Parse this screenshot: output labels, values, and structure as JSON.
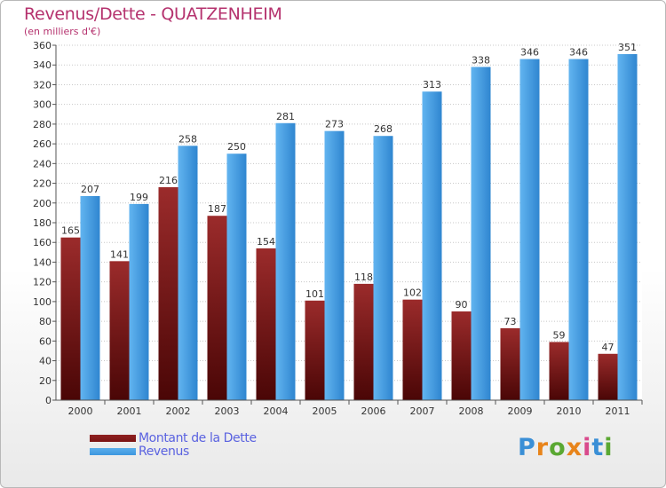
{
  "title": "Revenus/Dette - QUATZENHEIM",
  "subtitle": "(en milliers d'€)",
  "colors": {
    "title": "#b5326e",
    "dette": "#7a1414",
    "revenus": "#3d97df",
    "legend_text": "#5a62e0"
  },
  "chart_data": {
    "type": "bar",
    "categories": [
      "2000",
      "2001",
      "2002",
      "2003",
      "2004",
      "2005",
      "2006",
      "2007",
      "2008",
      "2009",
      "2010",
      "2011"
    ],
    "series": [
      {
        "name": "Montant de la Dette",
        "values": [
          165,
          141,
          216,
          187,
          154,
          101,
          118,
          102,
          90,
          73,
          59,
          47
        ]
      },
      {
        "name": "Revenus",
        "values": [
          207,
          199,
          258,
          250,
          281,
          273,
          268,
          313,
          338,
          346,
          346,
          351
        ]
      }
    ],
    "ylim": [
      0,
      360
    ],
    "yticks": [
      0,
      20,
      40,
      60,
      80,
      100,
      120,
      140,
      160,
      180,
      200,
      220,
      240,
      260,
      280,
      300,
      320,
      340,
      360
    ],
    "grid": true,
    "legend_position": "bottom-left"
  },
  "legend": {
    "dette_label": "Montant de la Dette",
    "revenus_label": "Revenus"
  },
  "logo": {
    "text": "Proxiti"
  }
}
